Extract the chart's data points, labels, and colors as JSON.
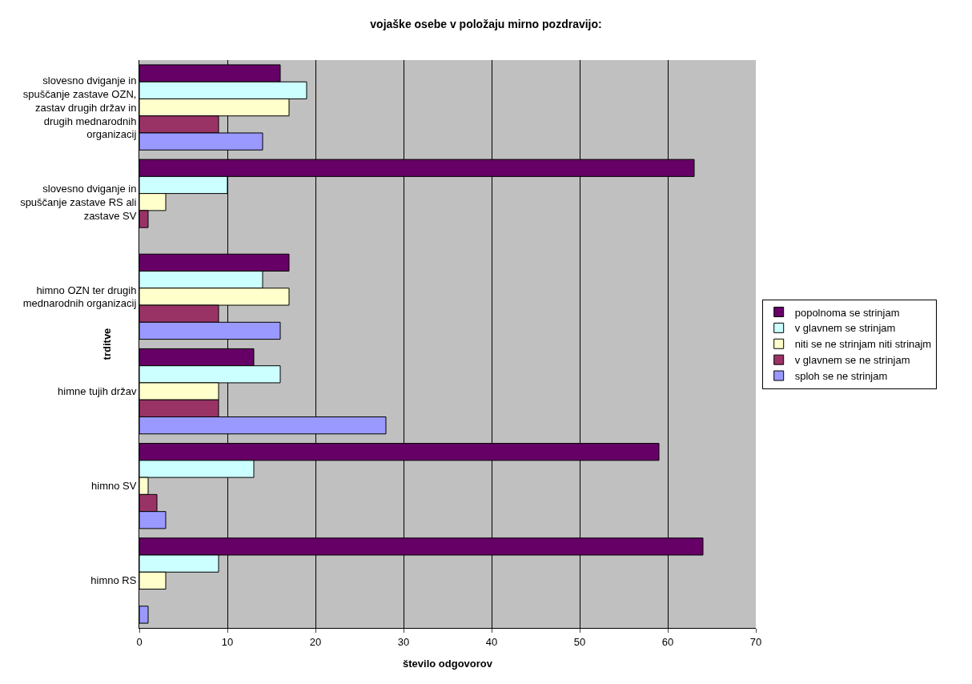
{
  "chart_data": {
    "type": "bar",
    "orientation": "horizontal",
    "title": "vojaške osebe v položaju mirno pozdravijo:",
    "xlabel": "število odgovorov",
    "ylabel": "trditve",
    "categories": [
      "slovesno dviganje in spuščanje zastave OZN, zastav drugih držav in drugih mednarodnih organizacij",
      "slovesno dviganje in spuščanje zastave RS ali zastave SV",
      "himno OZN ter drugih mednarodnih organizacij",
      "himne tujih držav",
      "himno SV",
      "himno RS"
    ],
    "series": [
      {
        "name": "popolnoma se strinjam",
        "color": "#660066",
        "values": [
          16,
          63,
          17,
          13,
          59,
          64
        ]
      },
      {
        "name": "v glavnem se strinjam",
        "color": "#ccffff",
        "values": [
          19,
          10,
          14,
          16,
          13,
          9
        ]
      },
      {
        "name": "niti se ne strinjam niti strinajm",
        "color": "#ffffcc",
        "values": [
          17,
          3,
          17,
          9,
          1,
          3
        ]
      },
      {
        "name": "v glavnem se ne strinjam",
        "color": "#993366",
        "values": [
          9,
          1,
          9,
          9,
          2,
          null
        ]
      },
      {
        "name": "sploh se ne strinjam",
        "color": "#9999ff",
        "values": [
          14,
          null,
          16,
          28,
          3,
          1
        ]
      }
    ],
    "xlim": [
      0,
      70
    ],
    "xticks": [
      0,
      10,
      20,
      30,
      40,
      50,
      60,
      70
    ],
    "grid": "x",
    "legend": "right"
  }
}
